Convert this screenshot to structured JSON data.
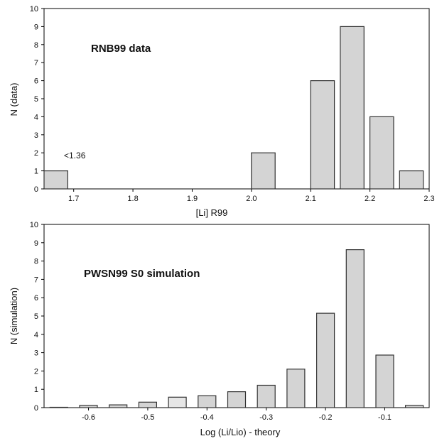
{
  "chart_data": [
    {
      "type": "bar",
      "panel_label": "RNB99 data",
      "xlabel": "[Li] R99",
      "ylabel": "N (data)",
      "xlim": [
        1.65,
        2.3
      ],
      "ylim": [
        0,
        10
      ],
      "xticks": [
        "1.7",
        "1.8",
        "1.9",
        "2.0",
        "2.1",
        "2.2",
        "2.3"
      ],
      "xtick_values": [
        1.7,
        1.8,
        1.9,
        2.0,
        2.1,
        2.2,
        2.3
      ],
      "yticks": [
        "0",
        "1",
        "2",
        "3",
        "4",
        "5",
        "6",
        "7",
        "8",
        "9",
        "10"
      ],
      "bar_width": 0.04,
      "x": [
        1.67,
        2.02,
        2.12,
        2.17,
        2.22,
        2.27
      ],
      "values": [
        1,
        2,
        6,
        9,
        4,
        1
      ],
      "annotation": "<1.36",
      "bar_color": "#d4d4d4",
      "grid": false
    },
    {
      "type": "bar",
      "panel_label": "PWSN99 S0 simulation",
      "xlabel": "Log (Li/Lio) - theory",
      "ylabel": "N (simulation)",
      "xlim": [
        -0.675,
        -0.025
      ],
      "ylim": [
        0,
        10
      ],
      "xticks": [
        "-0.6",
        "-0.5",
        "-0.4",
        "-0.3",
        "-0.2",
        "-0.1"
      ],
      "xtick_values": [
        -0.6,
        -0.5,
        -0.4,
        -0.3,
        -0.2,
        -0.1
      ],
      "yticks": [
        "0",
        "1",
        "2",
        "3",
        "4",
        "5",
        "6",
        "7",
        "8",
        "9",
        "10"
      ],
      "bar_width": 0.03,
      "x": [
        -0.65,
        -0.6,
        -0.55,
        -0.5,
        -0.45,
        -0.4,
        -0.35,
        -0.3,
        -0.25,
        -0.2,
        -0.15,
        -0.1,
        -0.05
      ],
      "values": [
        0.02,
        0.12,
        0.15,
        0.3,
        0.57,
        0.65,
        0.87,
        1.22,
        2.1,
        5.15,
        8.62,
        2.87,
        0.12
      ],
      "highlight_index": 4,
      "bar_color": "#d4d4d4",
      "highlight_color": "#e6e6e6",
      "grid": false
    }
  ]
}
